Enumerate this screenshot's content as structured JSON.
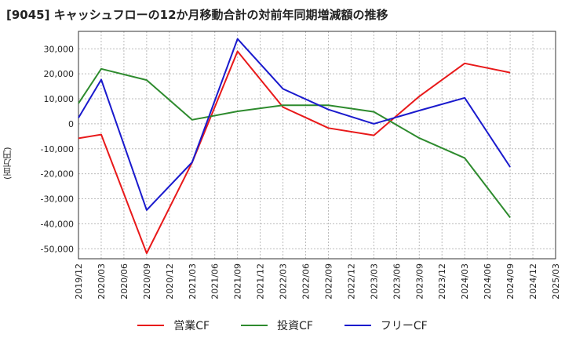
{
  "title": "[9045]  キャッシュフローの12か月移動合計の対前年同期増減額の推移",
  "chart_data": {
    "type": "line",
    "title": "[9045]  キャッシュフローの12か月移動合計の対前年同期増減額の推移",
    "ylabel": "(百万円)",
    "xlabel": "",
    "ylim": [
      -54000,
      37000
    ],
    "yticks": [
      30000,
      20000,
      10000,
      0,
      -10000,
      -20000,
      -30000,
      -40000,
      -50000
    ],
    "ytick_labels": [
      "30,000",
      "20,000",
      "10,000",
      "0",
      "-10,000",
      "-20,000",
      "-30,000",
      "-40,000",
      "-50,000"
    ],
    "categories": [
      "2019/12",
      "2020/03",
      "2020/06",
      "2020/09",
      "2020/12",
      "2021/03",
      "2021/06",
      "2021/09",
      "2021/12",
      "2022/03",
      "2022/06",
      "2022/09",
      "2022/12",
      "2023/03",
      "2023/06",
      "2023/09",
      "2023/12",
      "2024/03",
      "2024/06",
      "2024/09",
      "2024/12",
      "2025/03"
    ],
    "grid": true,
    "legend_position": "bottom",
    "series": [
      {
        "name": "営業CF",
        "color": "#e8191a",
        "points": [
          [
            0,
            -5800
          ],
          [
            1,
            -4300
          ],
          [
            3,
            -51800
          ],
          [
            5,
            -15500
          ],
          [
            7,
            29000
          ],
          [
            9,
            6700
          ],
          [
            11,
            -1700
          ],
          [
            13,
            -4600
          ],
          [
            15,
            11000
          ],
          [
            17,
            24200
          ],
          [
            19,
            20500
          ]
        ]
      },
      {
        "name": "投資CF",
        "color": "#2e8b2e",
        "points": [
          [
            0,
            8200
          ],
          [
            1,
            22000
          ],
          [
            3,
            17500
          ],
          [
            5,
            1600
          ],
          [
            7,
            5000
          ],
          [
            9,
            7400
          ],
          [
            11,
            7400
          ],
          [
            13,
            4800
          ],
          [
            15,
            -5700
          ],
          [
            17,
            -13700
          ],
          [
            19,
            -37500
          ]
        ]
      },
      {
        "name": "フリーCF",
        "color": "#1a1acd",
        "points": [
          [
            0,
            2400
          ],
          [
            1,
            17700
          ],
          [
            3,
            -34500
          ],
          [
            5,
            -15400
          ],
          [
            7,
            34000
          ],
          [
            9,
            14000
          ],
          [
            11,
            5700
          ],
          [
            13,
            0
          ],
          [
            15,
            5300
          ],
          [
            17,
            10400
          ],
          [
            19,
            -17300
          ]
        ]
      }
    ]
  }
}
